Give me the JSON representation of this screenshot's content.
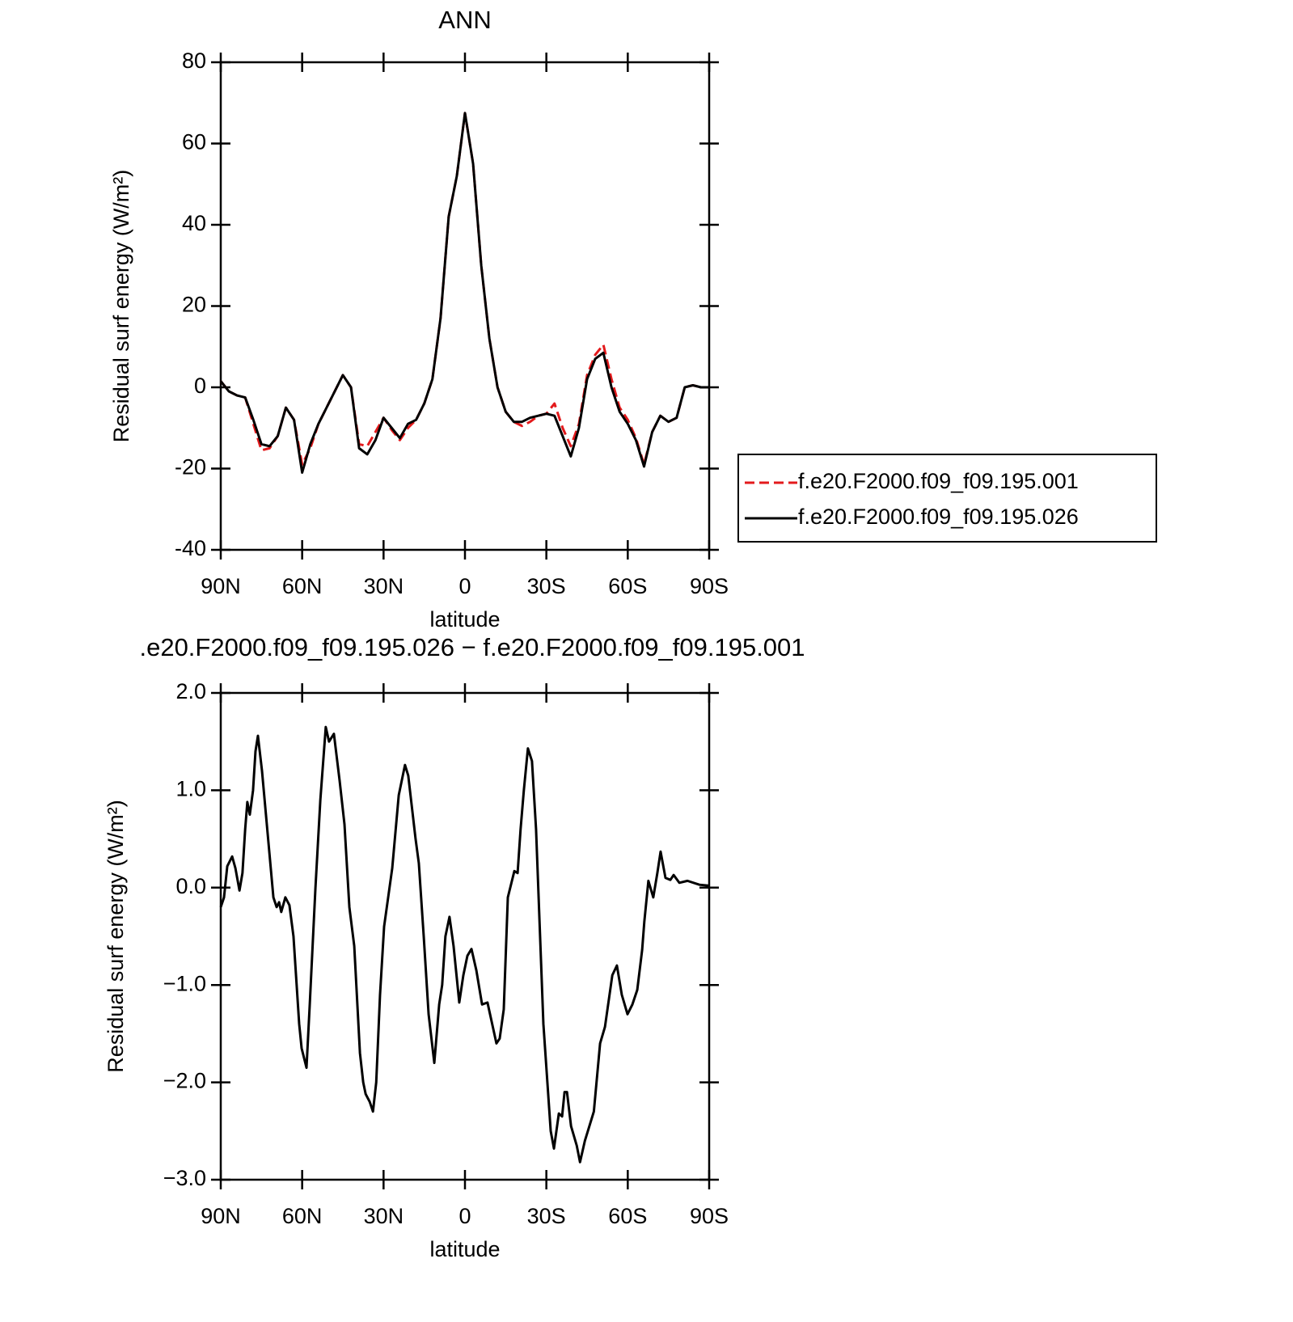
{
  "chart_data": [
    {
      "type": "line",
      "title": "ANN",
      "xlabel": "latitude",
      "ylabel": "Residual surf energy (W/m²)",
      "x": [
        90,
        87,
        84,
        81,
        78,
        75,
        72,
        69,
        66,
        63,
        60,
        57,
        54,
        51,
        48,
        45,
        42,
        39,
        36,
        33,
        30,
        27,
        24,
        21,
        18,
        15,
        12,
        9,
        6,
        3,
        0,
        -3,
        -6,
        -9,
        -12,
        -15,
        -18,
        -21,
        -24,
        -27,
        -30,
        -33,
        -36,
        -39,
        -42,
        -45,
        -48,
        -51,
        -54,
        -57,
        -60,
        -63,
        -66,
        -69,
        -72,
        -75,
        -78,
        -81,
        -84,
        -87,
        -90
      ],
      "series": [
        {
          "name": "f.e20.F2000.f09_f09.195.001",
          "color": "#e31a1c",
          "dash": true,
          "values": [
            1.5,
            -1,
            -2,
            -2.5,
            -9,
            -15.5,
            -15,
            -12,
            -5,
            -8,
            -19,
            -15,
            -9,
            -5,
            -1,
            3,
            0,
            -14,
            -14.5,
            -11,
            -7.5,
            -10.5,
            -13,
            -10,
            -8,
            -4,
            2,
            17,
            42,
            52,
            67.5,
            55,
            30,
            12,
            0,
            -6,
            -8.5,
            -9.5,
            -8.5,
            -7,
            -6.5,
            -4,
            -10,
            -14.5,
            -9,
            3,
            8,
            10.5,
            2,
            -5,
            -8,
            -12.5,
            -19,
            -11,
            -7,
            -8.5,
            -7.5,
            0,
            0.5,
            0,
            0
          ]
        },
        {
          "name": "f.e20.F2000.f09_f09.195.026",
          "color": "#000000",
          "dash": false,
          "values": [
            1.5,
            -1,
            -2,
            -2.5,
            -8,
            -14,
            -14.5,
            -12,
            -5,
            -8,
            -21,
            -14,
            -9,
            -5,
            -1,
            3,
            0,
            -15,
            -16.5,
            -13,
            -7.5,
            -10,
            -12.5,
            -9,
            -8,
            -4,
            2,
            17,
            42,
            52,
            67.5,
            55,
            30,
            12,
            0,
            -6,
            -8.5,
            -8.5,
            -7.5,
            -7,
            -6.5,
            -7,
            -12,
            -17,
            -10,
            2,
            7,
            8.5,
            0,
            -6,
            -9,
            -13,
            -19.5,
            -11,
            -7,
            -8.5,
            -7.5,
            0,
            0.5,
            0,
            0
          ]
        }
      ],
      "xlim": [
        90,
        -90
      ],
      "xticks": [
        {
          "value": 90,
          "label": "90N"
        },
        {
          "value": 60,
          "label": "60N"
        },
        {
          "value": 30,
          "label": "30N"
        },
        0,
        {
          "value": -30,
          "label": "30S"
        },
        {
          "value": -60,
          "label": "60S"
        },
        {
          "value": -90,
          "label": "90S"
        }
      ],
      "ylim": [
        -40,
        80
      ],
      "yticks": [
        -40,
        -20,
        0,
        20,
        40,
        60,
        80
      ],
      "legend": "right"
    },
    {
      "type": "line",
      "title": ".e20.F2000.f09_f09.195.026 − f.e20.F2000.f09_f09.195.001",
      "xlabel": "latitude",
      "ylabel": "Residual surf energy (W/m²)",
      "x": [
        90,
        88.8,
        87.6,
        85.8,
        84.6,
        83.1,
        82,
        81,
        80.2,
        79.3,
        78.1,
        77.2,
        76.3,
        74.8,
        72.7,
        70.6,
        69.4,
        68.5,
        67.7,
        66.2,
        64.7,
        63.2,
        61.1,
        60.2,
        58.4,
        57.2,
        55.1,
        53.3,
        51.3,
        50.1,
        48.3,
        46.2,
        44.4,
        42.6,
        40.8,
        38.7,
        37.5,
        36.6,
        35.1,
        33.9,
        32.7,
        31.3,
        29.8,
        26.8,
        24.4,
        22.1,
        20.9,
        18.2,
        17,
        15.2,
        13.4,
        11.3,
        9.5,
        8.4,
        7.2,
        5.7,
        4.2,
        2.1,
        0.6,
        -0.9,
        -2.4,
        -4.2,
        -6.3,
        -8.3,
        -11.6,
        -12.8,
        -14.3,
        -15.8,
        -18.2,
        -19.4,
        -20.5,
        -21.7,
        -23.2,
        -24.7,
        -26.2,
        -28.9,
        -31.6,
        -32.8,
        -34.6,
        -35.8,
        -36.7,
        -37.6,
        -39.1,
        -41.2,
        -42.4,
        -44.2,
        -47.5,
        -49.8,
        -51.6,
        -54.3,
        -56,
        -57.8,
        -59.9,
        -61.7,
        -63.5,
        -65.3,
        -66.1,
        -67.6,
        -69.4,
        -70.9,
        -72.1,
        -73.9,
        -75.7,
        -76.9,
        -79,
        -82,
        -86.4,
        -90
      ],
      "series": [
        {
          "name": "f.e20.F2000.f09_f09.195.026 − f.e20.F2000.f09_f09.195.001",
          "color": "#000000",
          "dash": false,
          "values": [
            -0.2,
            -0.1,
            0.22,
            0.32,
            0.2,
            -0.03,
            0.15,
            0.6,
            0.88,
            0.75,
            1.0,
            1.4,
            1.56,
            1.2,
            0.55,
            -0.1,
            -0.2,
            -0.15,
            -0.25,
            -0.1,
            -0.18,
            -0.5,
            -1.4,
            -1.65,
            -1.85,
            -1.2,
            0,
            0.9,
            1.65,
            1.5,
            1.58,
            1.1,
            0.65,
            -0.2,
            -0.6,
            -1.7,
            -2.0,
            -2.12,
            -2.2,
            -2.3,
            -2.0,
            -1.1,
            -0.4,
            0.2,
            0.95,
            1.26,
            1.15,
            0.5,
            0.25,
            -0.5,
            -1.3,
            -1.8,
            -1.2,
            -1.0,
            -0.5,
            -0.3,
            -0.6,
            -1.18,
            -0.9,
            -0.7,
            -0.63,
            -0.85,
            -1.2,
            -1.18,
            -1.6,
            -1.55,
            -1.25,
            -0.1,
            0.17,
            0.15,
            0.6,
            1.0,
            1.43,
            1.3,
            0.6,
            -1.4,
            -2.5,
            -2.68,
            -2.32,
            -2.35,
            -2.1,
            -2.1,
            -2.45,
            -2.65,
            -2.82,
            -2.6,
            -2.3,
            -1.6,
            -1.43,
            -0.9,
            -0.8,
            -1.1,
            -1.3,
            -1.2,
            -1.05,
            -0.64,
            -0.35,
            0.07,
            -0.1,
            0.15,
            0.37,
            0.1,
            0.08,
            0.13,
            0.05,
            0.07,
            0.03,
            0.02
          ]
        }
      ],
      "xlim": [
        90,
        -90
      ],
      "xticks": [
        {
          "value": 90,
          "label": "90N"
        },
        {
          "value": 60,
          "label": "60N"
        },
        {
          "value": 30,
          "label": "30N"
        },
        0,
        {
          "value": -30,
          "label": "30S"
        },
        {
          "value": -60,
          "label": "60S"
        },
        {
          "value": -90,
          "label": "90S"
        }
      ],
      "ylim": [
        -3,
        2
      ],
      "yticks": [
        {
          "value": -3,
          "label": "−3.0"
        },
        {
          "value": -2,
          "label": "−2.0"
        },
        {
          "value": -1,
          "label": "−1.0"
        },
        {
          "value": 0,
          "label": "0.0"
        },
        {
          "value": 1,
          "label": "1.0"
        },
        {
          "value": 2,
          "label": "2.0"
        }
      ]
    }
  ]
}
